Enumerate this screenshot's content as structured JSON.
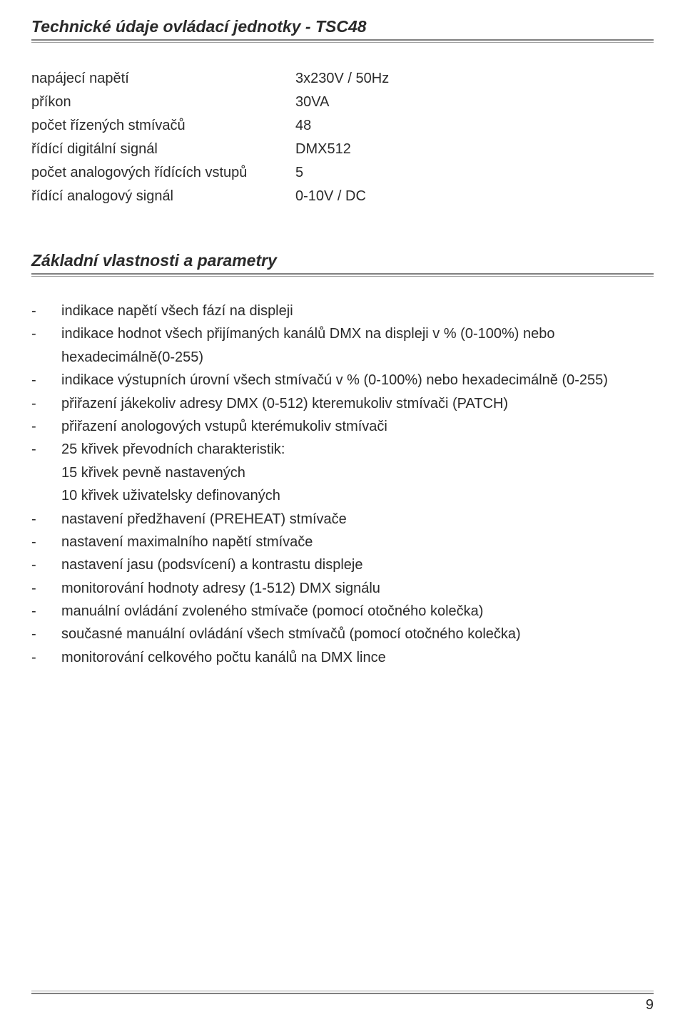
{
  "section1": {
    "title": "Technické údaje ovládací jednotky - TSC48",
    "specs": [
      {
        "label": "napájecí napětí",
        "value": "3x230V / 50Hz"
      },
      {
        "label": "příkon",
        "value": "30VA"
      },
      {
        "label": "počet řízených stmívačů",
        "value": "48"
      },
      {
        "label": "řídící digitální signál",
        "value": "DMX512"
      },
      {
        "label": "počet analogových řídících vstupů",
        "value": "5"
      },
      {
        "label": "řídící analogový signál",
        "value": "0-10V / DC"
      }
    ]
  },
  "section2": {
    "title": "Základní vlastnosti a parametry",
    "items": [
      {
        "text": "indikace napětí všech fází na displeji"
      },
      {
        "text": "indikace hodnot všech přijímaných kanálů DMX na displeji v % (0-100%) nebo hexadecimálně(0-255)"
      },
      {
        "text": "indikace výstupních úrovní všech stmívačú v % (0-100%) nebo hexadecimálně (0-255)"
      },
      {
        "text": "přiřazení jákekoliv adresy DMX (0-512) kteremukoliv stmívači (PATCH)"
      },
      {
        "text": "přiřazení anologových vstupů kterémukoliv stmívači"
      },
      {
        "text": "25 křivek převodních charakteristik:",
        "subs": [
          "15 křivek pevně nastavených",
          "10 křivek uživatelsky definovaných"
        ]
      },
      {
        "text": "nastavení předžhavení (PREHEAT) stmívače"
      },
      {
        "text": "nastavení maximalního napětí stmívače"
      },
      {
        "text": "nastavení jasu (podsvícení) a kontrastu displeje"
      },
      {
        "text": "monitorování hodnoty adresy (1-512) DMX signálu"
      },
      {
        "text": "manuální ovládání zvoleného stmívače (pomocí otočného kolečka)"
      },
      {
        "text": "současné manuální ovládání všech stmívačů (pomocí otočného kolečka)"
      },
      {
        "text": "monitorování celkového počtu kanálů na DMX lince"
      }
    ]
  },
  "page_number": "9",
  "colors": {
    "text": "#2a2a2a",
    "rule_dark": "#808080",
    "rule_light": "#a0a0a0",
    "background": "#ffffff"
  }
}
